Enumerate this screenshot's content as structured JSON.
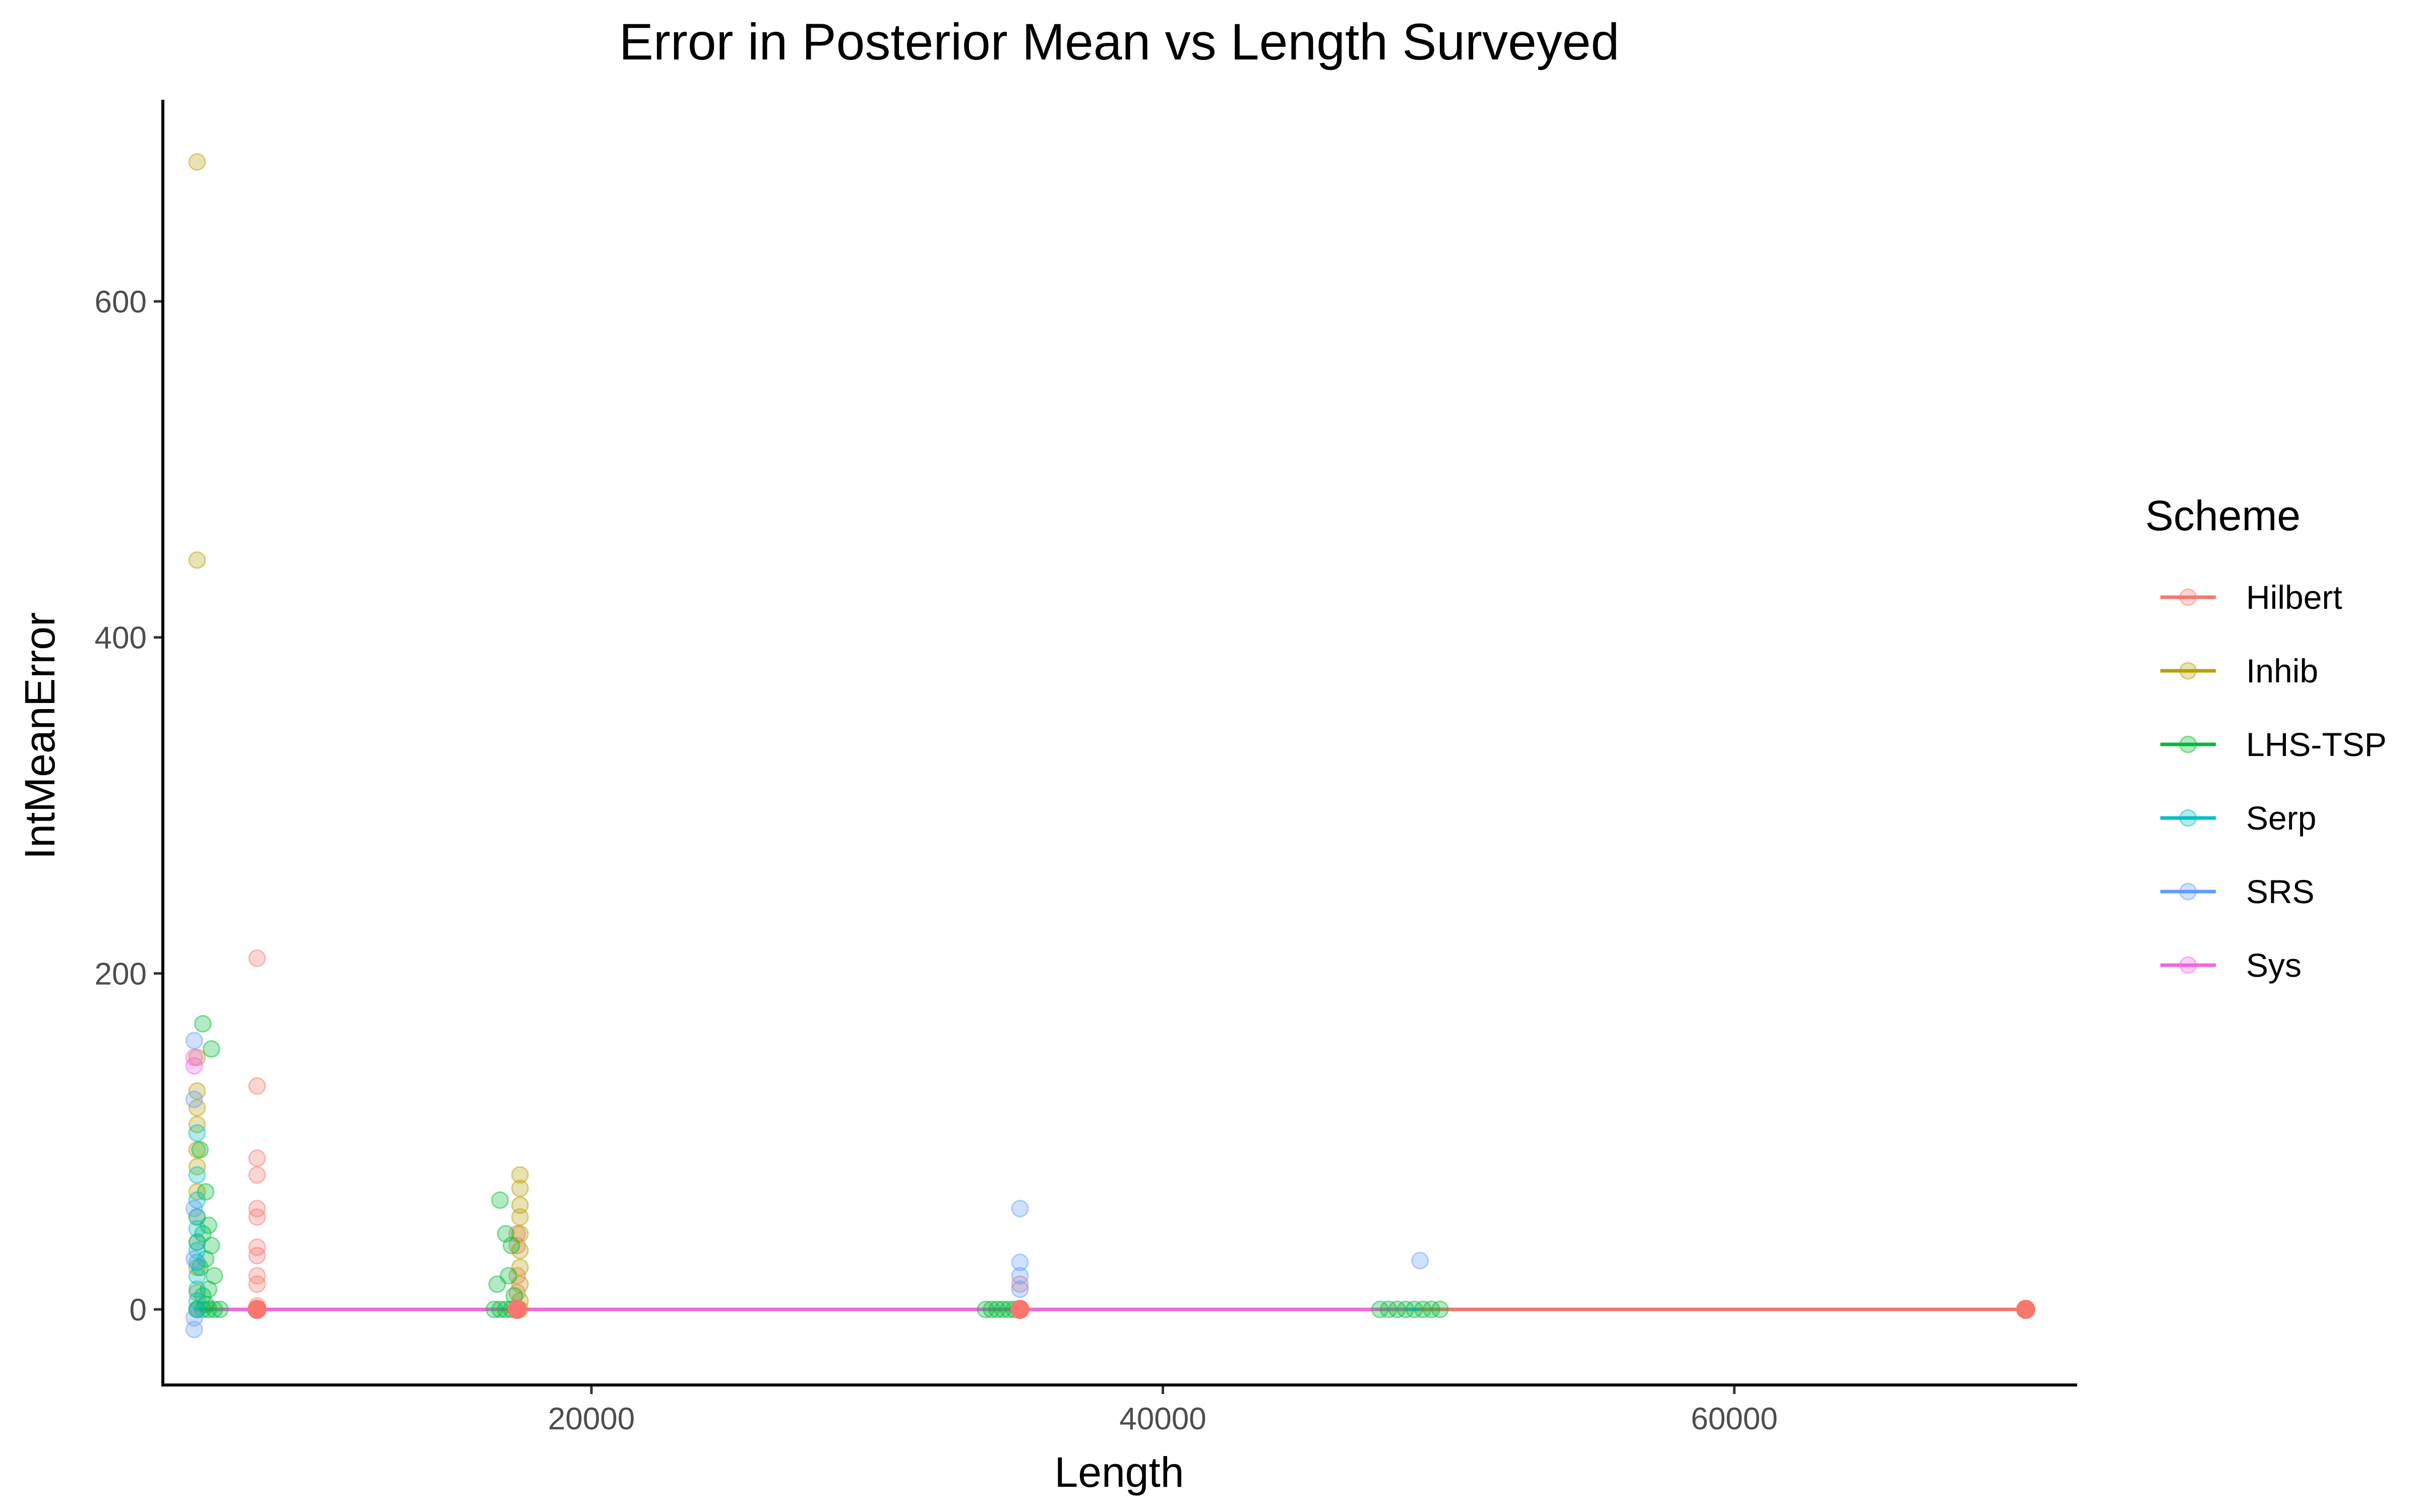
{
  "chart_data": {
    "type": "scatter",
    "title": "Error in Posterior Mean vs Length Surveyed",
    "xlabel": "Length",
    "ylabel": "IntMeanError",
    "xlim": [
      5000,
      72000
    ],
    "ylim": [
      -45,
      720
    ],
    "x_ticks": [
      20000,
      40000,
      60000
    ],
    "x_tick_labels": [
      "20000",
      "40000",
      "60000"
    ],
    "y_ticks": [
      0,
      200,
      400,
      600
    ],
    "y_tick_labels": [
      "0",
      "200",
      "400",
      "600"
    ],
    "grid": false,
    "legend": {
      "title": "Scheme",
      "position": "right"
    },
    "series": [
      {
        "name": "Hilbert",
        "color": "#F8766D",
        "points": [
          [
            8300,
            209
          ],
          [
            8300,
            133
          ],
          [
            8300,
            90
          ],
          [
            8300,
            80
          ],
          [
            8300,
            60
          ],
          [
            8300,
            55
          ],
          [
            8300,
            37
          ],
          [
            8300,
            32
          ],
          [
            8300,
            20
          ],
          [
            8300,
            15
          ],
          [
            8300,
            2
          ],
          [
            8300,
            0
          ],
          [
            17400,
            45
          ],
          [
            17400,
            38
          ],
          [
            17400,
            20
          ],
          [
            17400,
            10
          ],
          [
            17400,
            0
          ],
          [
            35000,
            15
          ],
          [
            35000,
            0
          ],
          [
            70200,
            0
          ]
        ],
        "mean_line": [
          [
            8300,
            0
          ],
          [
            17400,
            0
          ],
          [
            35000,
            0
          ],
          [
            48500,
            0
          ],
          [
            70200,
            0
          ]
        ]
      },
      {
        "name": "Inhib",
        "color": "#B79F00",
        "points": [
          [
            6200,
            683
          ],
          [
            6200,
            446
          ],
          [
            6200,
            150
          ],
          [
            6200,
            130
          ],
          [
            6200,
            120
          ],
          [
            6200,
            110
          ],
          [
            6200,
            95
          ],
          [
            6200,
            85
          ],
          [
            6200,
            70
          ],
          [
            6200,
            55
          ],
          [
            6200,
            40
          ],
          [
            6200,
            25
          ],
          [
            6200,
            10
          ],
          [
            6200,
            0
          ],
          [
            17500,
            80
          ],
          [
            17500,
            72
          ],
          [
            17500,
            62
          ],
          [
            17500,
            55
          ],
          [
            17500,
            45
          ],
          [
            17500,
            35
          ],
          [
            17500,
            25
          ],
          [
            17500,
            15
          ],
          [
            17500,
            5
          ],
          [
            17500,
            0
          ]
        ],
        "mean_line": [
          [
            6200,
            0
          ],
          [
            17500,
            0
          ]
        ]
      },
      {
        "name": "LHS-TSP",
        "color": "#00BA38",
        "points": [
          [
            6400,
            170
          ],
          [
            6700,
            155
          ],
          [
            6300,
            95
          ],
          [
            6500,
            70
          ],
          [
            6600,
            50
          ],
          [
            6400,
            45
          ],
          [
            6700,
            38
          ],
          [
            6500,
            30
          ],
          [
            6300,
            25
          ],
          [
            6800,
            20
          ],
          [
            6600,
            12
          ],
          [
            6400,
            8
          ],
          [
            6500,
            3
          ],
          [
            6200,
            0
          ],
          [
            6400,
            0
          ],
          [
            6600,
            0
          ],
          [
            6800,
            0
          ],
          [
            7000,
            0
          ],
          [
            16800,
            65
          ],
          [
            17000,
            45
          ],
          [
            17200,
            38
          ],
          [
            16700,
            15
          ],
          [
            17100,
            20
          ],
          [
            17300,
            8
          ],
          [
            16600,
            0
          ],
          [
            16800,
            0
          ],
          [
            17000,
            0
          ],
          [
            17200,
            0
          ],
          [
            33800,
            0
          ],
          [
            34000,
            0
          ],
          [
            34200,
            0
          ],
          [
            34400,
            0
          ],
          [
            34600,
            0
          ],
          [
            34800,
            0
          ],
          [
            47600,
            0
          ],
          [
            47900,
            0
          ],
          [
            48200,
            0
          ],
          [
            48500,
            0
          ],
          [
            48800,
            0
          ],
          [
            49100,
            0
          ],
          [
            49400,
            0
          ],
          [
            49700,
            0
          ]
        ],
        "mean_line": [
          [
            6200,
            0
          ],
          [
            17000,
            0
          ],
          [
            34500,
            0
          ],
          [
            48500,
            0
          ]
        ]
      },
      {
        "name": "Serp",
        "color": "#00BFC4",
        "points": [
          [
            6200,
            105
          ],
          [
            6200,
            80
          ],
          [
            6200,
            65
          ],
          [
            6200,
            55
          ],
          [
            6200,
            48
          ],
          [
            6200,
            40
          ],
          [
            6200,
            35
          ],
          [
            6200,
            28
          ],
          [
            6200,
            20
          ],
          [
            6200,
            12
          ],
          [
            6200,
            5
          ],
          [
            6200,
            0
          ]
        ],
        "mean_line": [
          [
            6200,
            0
          ],
          [
            17000,
            0
          ]
        ]
      },
      {
        "name": "SRS",
        "color": "#619CFF",
        "points": [
          [
            6100,
            160
          ],
          [
            6100,
            125
          ],
          [
            6100,
            60
          ],
          [
            6100,
            30
          ],
          [
            6100,
            -5
          ],
          [
            6100,
            -12
          ],
          [
            35000,
            60
          ],
          [
            35000,
            28
          ],
          [
            35000,
            20
          ],
          [
            35000,
            12
          ],
          [
            49000,
            29
          ]
        ],
        "mean_line": [
          [
            6100,
            0
          ],
          [
            35000,
            0
          ],
          [
            49000,
            0
          ]
        ]
      },
      {
        "name": "Sys",
        "color": "#F564E3",
        "points": [
          [
            6100,
            150
          ],
          [
            6100,
            145
          ]
        ],
        "mean_line": [
          [
            6100,
            0
          ],
          [
            48500,
            0
          ]
        ]
      }
    ]
  }
}
